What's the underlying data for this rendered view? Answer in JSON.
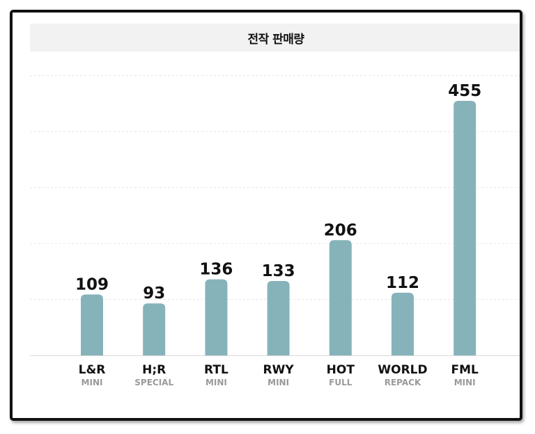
{
  "chart_data": {
    "type": "bar",
    "title": "전작 판매량",
    "categories": [
      "L&R",
      "H;R",
      "RTL",
      "RWY",
      "HOT",
      "WORLD",
      "FML"
    ],
    "subcategories": [
      "MINI",
      "SPECIAL",
      "MINI",
      "MINI",
      "FULL",
      "REPACK",
      "MINI"
    ],
    "values": [
      109,
      93,
      136,
      133,
      206,
      112,
      455
    ],
    "ylim": [
      0,
      500
    ],
    "grid": true,
    "bar_color": "#86b3b9",
    "gridline_color": "#e6e6e6"
  }
}
